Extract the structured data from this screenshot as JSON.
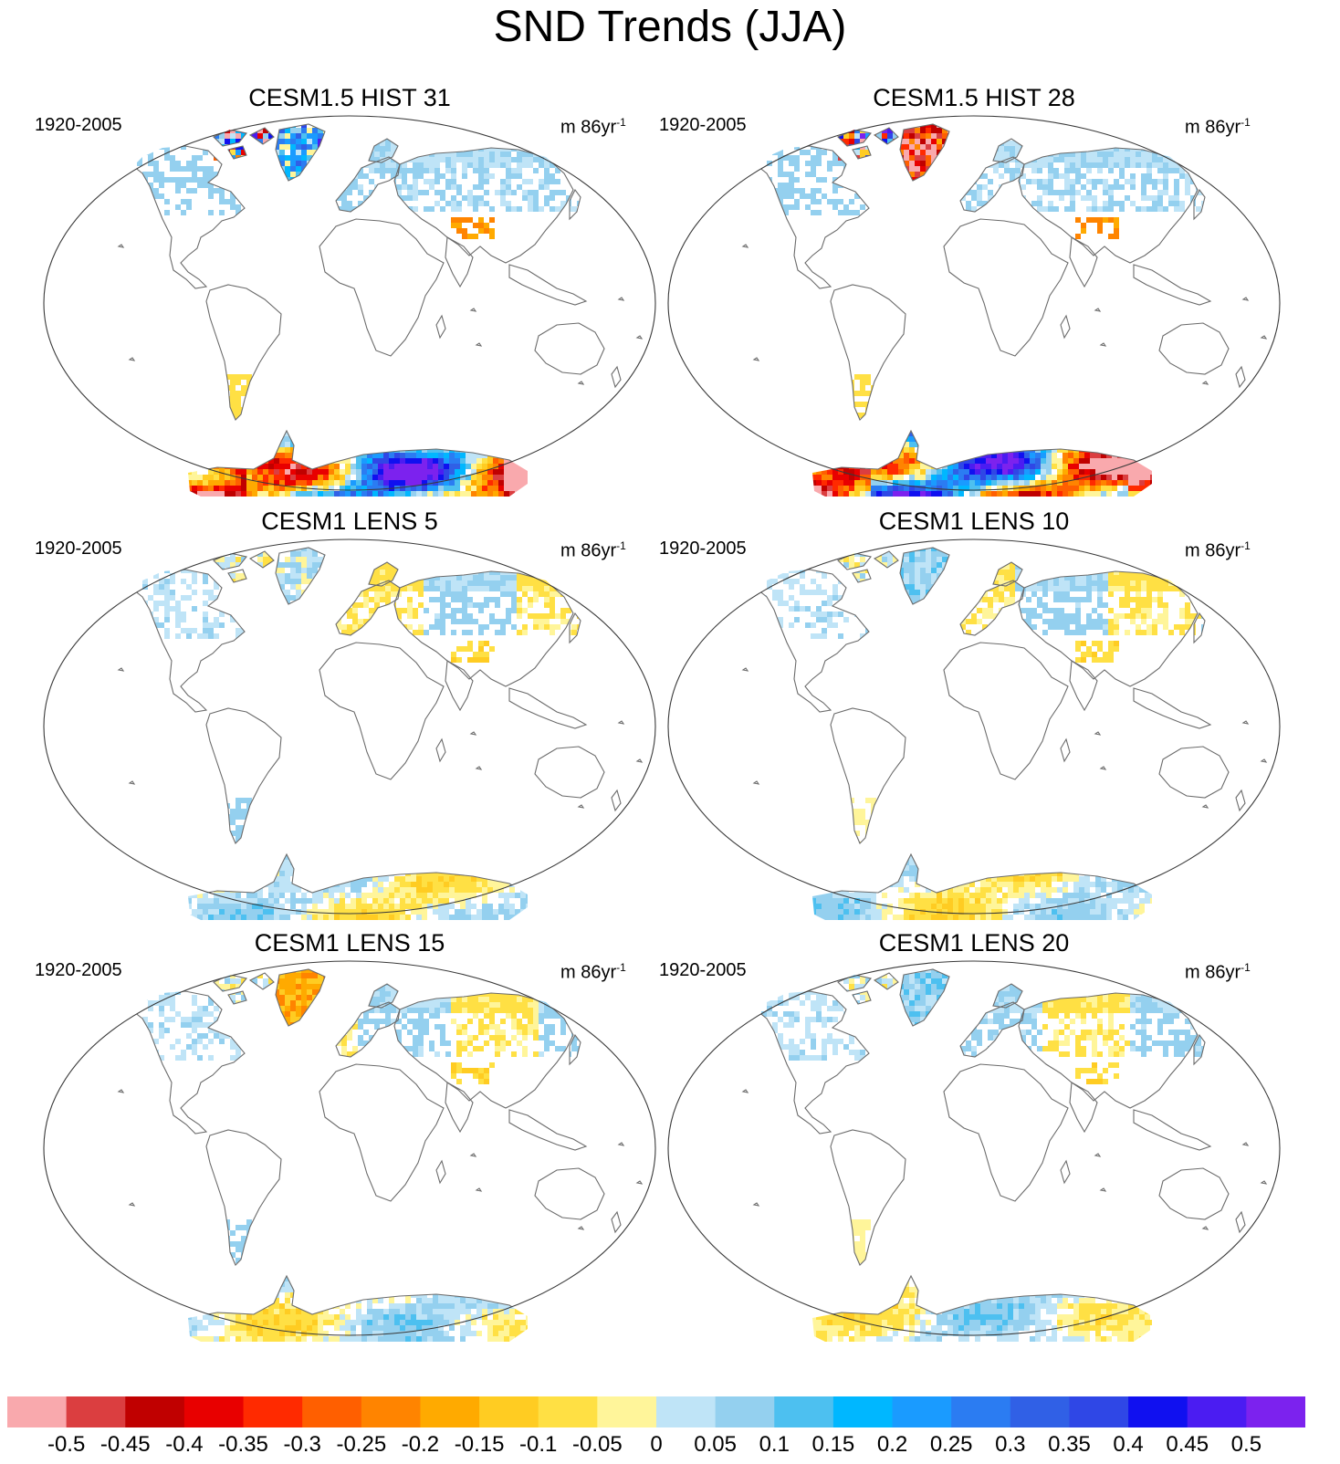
{
  "title": "SND Trends (JJA)",
  "panels": [
    {
      "title": "CESM1.5 HIST 31",
      "years": "1920-2005",
      "units_base": "m 86yr",
      "units_exp": "-1",
      "intensity": "strong",
      "greenland": "positive"
    },
    {
      "title": "CESM1.5 HIST 28",
      "years": "1920-2005",
      "units_base": "m 86yr",
      "units_exp": "-1",
      "intensity": "strong",
      "greenland": "negative"
    },
    {
      "title": "CESM1 LENS 5",
      "years": "1920-2005",
      "units_base": "m 86yr",
      "units_exp": "-1",
      "intensity": "weak",
      "greenland": "mixed"
    },
    {
      "title": "CESM1 LENS 10",
      "years": "1920-2005",
      "units_base": "m 86yr",
      "units_exp": "-1",
      "intensity": "weak",
      "greenland": "positive"
    },
    {
      "title": "CESM1 LENS 15",
      "years": "1920-2005",
      "units_base": "m 86yr",
      "units_exp": "-1",
      "intensity": "weak",
      "greenland": "negative"
    },
    {
      "title": "CESM1 LENS 20",
      "years": "1920-2005",
      "units_base": "m 86yr",
      "units_exp": "-1",
      "intensity": "weak",
      "greenland": "positive"
    }
  ],
  "colorbar": {
    "labels": [
      "-0.5",
      "-0.45",
      "-0.4",
      "-0.35",
      "-0.3",
      "-0.25",
      "-0.2",
      "-0.15",
      "-0.1",
      "-0.05",
      "0",
      "0.05",
      "0.1",
      "0.15",
      "0.2",
      "0.25",
      "0.3",
      "0.35",
      "0.4",
      "0.45",
      "0.5"
    ],
    "colors": [
      "#f9a9ad",
      "#db3e40",
      "#c00000",
      "#e80000",
      "#ff2a00",
      "#ff5f00",
      "#ff8400",
      "#ffaa00",
      "#ffcc22",
      "#ffe044",
      "#fff59a",
      "#bfe4f7",
      "#94d0ef",
      "#4dc0f0",
      "#00b7ff",
      "#1a9bff",
      "#2b7cf2",
      "#3060e6",
      "#2f47e6",
      "#1010f0",
      "#4b1cf2",
      "#7c22ee"
    ]
  }
}
